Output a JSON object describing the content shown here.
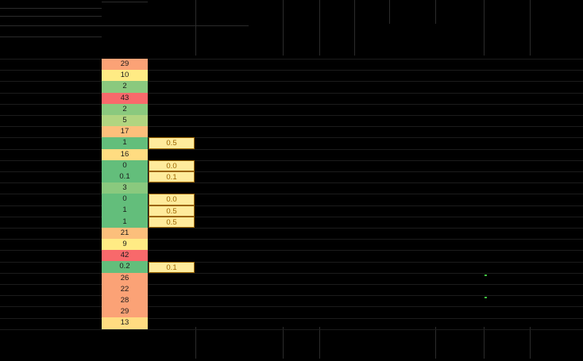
{
  "colors": {
    "background": "#000000",
    "red": "#f8696b",
    "orange": "#fba276",
    "light_orange": "#fcbf7b",
    "yellow": "#ffeb84",
    "light_green": "#b1d580",
    "green": "#63be7b",
    "mid_green": "#8ac97e",
    "box_fill": "#ffeb9c",
    "box_text": "#9c6500"
  },
  "column_values": [
    {
      "value": "29",
      "color": "#fba276"
    },
    {
      "value": "10",
      "color": "#ffeb84"
    },
    {
      "value": "2",
      "color": "#8ac97e"
    },
    {
      "value": "43",
      "color": "#f8696b"
    },
    {
      "value": "2",
      "color": "#8ac97e"
    },
    {
      "value": "5",
      "color": "#b1d580"
    },
    {
      "value": "17",
      "color": "#fcbf7b"
    },
    {
      "value": "1",
      "color": "#63be7b"
    },
    {
      "value": "16",
      "color": "#ffdc81"
    },
    {
      "value": "0",
      "color": "#63be7b"
    },
    {
      "value": "0.1",
      "color": "#63be7b"
    },
    {
      "value": "3",
      "color": "#8ac97e"
    },
    {
      "value": "0",
      "color": "#63be7b"
    },
    {
      "value": "1",
      "color": "#63be7b"
    },
    {
      "value": "1",
      "color": "#63be7b"
    },
    {
      "value": "21",
      "color": "#fcbf7b"
    },
    {
      "value": "9",
      "color": "#ffeb84"
    },
    {
      "value": "42",
      "color": "#f8696b"
    },
    {
      "value": "0.2",
      "color": "#63be7b"
    },
    {
      "value": "26",
      "color": "#fba276"
    },
    {
      "value": "22",
      "color": "#fba276"
    },
    {
      "value": "28",
      "color": "#fba276"
    },
    {
      "value": "29",
      "color": "#fba276"
    },
    {
      "value": "13",
      "color": "#ffdc81"
    }
  ],
  "side_boxes": [
    {
      "row": 7,
      "value": "0.5"
    },
    {
      "row": 9,
      "value": "0.0"
    },
    {
      "row": 10,
      "value": "0.1"
    },
    {
      "row": 12,
      "value": "0.0"
    },
    {
      "row": 13,
      "value": "0.5"
    },
    {
      "row": 14,
      "value": "0.5"
    },
    {
      "row": 18,
      "value": "0.1"
    }
  ]
}
